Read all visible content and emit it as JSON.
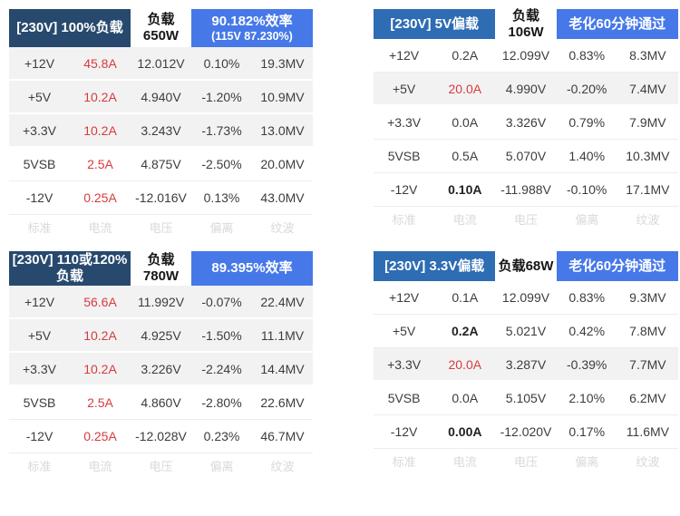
{
  "colors": {
    "navy": "#27496d",
    "steel_blue": "#2e6cb4",
    "bright_blue": "#4678e8",
    "red": "#d93a3c",
    "row_highlight": "#f2f2f3",
    "divider": "#ededef",
    "text": "#3b3c3f",
    "footer_text": "#d7d9dc"
  },
  "chart_data": [
    {
      "type": "table",
      "title": "[230V] 100%负载",
      "title_lines": [
        "[230V] 100%负载",
        ""
      ],
      "load": "负载650W",
      "result_lines": [
        "90.182%效率",
        "(115V 87.230%)"
      ],
      "result_kind": "efficiency",
      "columns": [
        "标准",
        "电流",
        "电压",
        "偏离",
        "纹波"
      ],
      "rows": [
        {
          "rail": "+12V",
          "current": "45.8A",
          "voltage": "12.012V",
          "deviation": "0.10%",
          "ripple": "19.3MV",
          "current_red": true,
          "current_bold": false,
          "highlight": true
        },
        {
          "rail": "+5V",
          "current": "10.2A",
          "voltage": "4.940V",
          "deviation": "-1.20%",
          "ripple": "10.9MV",
          "current_red": true,
          "current_bold": false,
          "highlight": true
        },
        {
          "rail": "+3.3V",
          "current": "10.2A",
          "voltage": "3.243V",
          "deviation": "-1.73%",
          "ripple": "13.0MV",
          "current_red": true,
          "current_bold": false,
          "highlight": true
        },
        {
          "rail": "5VSB",
          "current": "2.5A",
          "voltage": "4.875V",
          "deviation": "-2.50%",
          "ripple": "20.0MV",
          "current_red": true,
          "current_bold": false,
          "highlight": false
        },
        {
          "rail": "-12V",
          "current": "0.25A",
          "voltage": "-12.016V",
          "deviation": "0.13%",
          "ripple": "43.0MV",
          "current_red": true,
          "current_bold": false,
          "highlight": false
        }
      ]
    },
    {
      "type": "table",
      "title": "[230V] 5V偏载",
      "title_lines": [
        "[230V] 5V偏载",
        ""
      ],
      "load": "负载106W",
      "result_lines": [
        "老化60分钟通过",
        ""
      ],
      "result_kind": "aging",
      "columns": [
        "标准",
        "电流",
        "电压",
        "偏离",
        "纹波"
      ],
      "rows": [
        {
          "rail": "+12V",
          "current": "0.2A",
          "voltage": "12.099V",
          "deviation": "0.83%",
          "ripple": "8.3MV",
          "current_red": false,
          "current_bold": false,
          "highlight": false
        },
        {
          "rail": "+5V",
          "current": "20.0A",
          "voltage": "4.990V",
          "deviation": "-0.20%",
          "ripple": "7.4MV",
          "current_red": true,
          "current_bold": false,
          "highlight": true
        },
        {
          "rail": "+3.3V",
          "current": "0.0A",
          "voltage": "3.326V",
          "deviation": "0.79%",
          "ripple": "7.9MV",
          "current_red": false,
          "current_bold": false,
          "highlight": false
        },
        {
          "rail": "5VSB",
          "current": "0.5A",
          "voltage": "5.070V",
          "deviation": "1.40%",
          "ripple": "10.3MV",
          "current_red": false,
          "current_bold": false,
          "highlight": false
        },
        {
          "rail": "-12V",
          "current": "0.10A",
          "voltage": "-11.988V",
          "deviation": "-0.10%",
          "ripple": "17.1MV",
          "current_red": false,
          "current_bold": true,
          "highlight": false
        }
      ]
    },
    {
      "type": "table",
      "title": "[230V] 110或120%负载",
      "title_lines": [
        "[230V] 110或120%",
        "负载"
      ],
      "load": "负载780W",
      "result_lines": [
        "89.395%效率",
        ""
      ],
      "result_kind": "efficiency",
      "columns": [
        "标准",
        "电流",
        "电压",
        "偏离",
        "纹波"
      ],
      "rows": [
        {
          "rail": "+12V",
          "current": "56.6A",
          "voltage": "11.992V",
          "deviation": "-0.07%",
          "ripple": "22.4MV",
          "current_red": true,
          "current_bold": false,
          "highlight": true
        },
        {
          "rail": "+5V",
          "current": "10.2A",
          "voltage": "4.925V",
          "deviation": "-1.50%",
          "ripple": "11.1MV",
          "current_red": true,
          "current_bold": false,
          "highlight": true
        },
        {
          "rail": "+3.3V",
          "current": "10.2A",
          "voltage": "3.226V",
          "deviation": "-2.24%",
          "ripple": "14.4MV",
          "current_red": true,
          "current_bold": false,
          "highlight": true
        },
        {
          "rail": "5VSB",
          "current": "2.5A",
          "voltage": "4.860V",
          "deviation": "-2.80%",
          "ripple": "22.6MV",
          "current_red": true,
          "current_bold": false,
          "highlight": false
        },
        {
          "rail": "-12V",
          "current": "0.25A",
          "voltage": "-12.028V",
          "deviation": "0.23%",
          "ripple": "46.7MV",
          "current_red": true,
          "current_bold": false,
          "highlight": false
        }
      ]
    },
    {
      "type": "table",
      "title": "[230V] 3.3V偏载",
      "title_lines": [
        "[230V] 3.3V偏载",
        ""
      ],
      "load": "负载68W",
      "result_lines": [
        "老化60分钟通过",
        ""
      ],
      "result_kind": "aging",
      "columns": [
        "标准",
        "电流",
        "电压",
        "偏离",
        "纹波"
      ],
      "rows": [
        {
          "rail": "+12V",
          "current": "0.1A",
          "voltage": "12.099V",
          "deviation": "0.83%",
          "ripple": "9.3MV",
          "current_red": false,
          "current_bold": false,
          "highlight": false
        },
        {
          "rail": "+5V",
          "current": "0.2A",
          "voltage": "5.021V",
          "deviation": "0.42%",
          "ripple": "7.8MV",
          "current_red": false,
          "current_bold": true,
          "highlight": false
        },
        {
          "rail": "+3.3V",
          "current": "20.0A",
          "voltage": "3.287V",
          "deviation": "-0.39%",
          "ripple": "7.7MV",
          "current_red": true,
          "current_bold": false,
          "highlight": true
        },
        {
          "rail": "5VSB",
          "current": "0.0A",
          "voltage": "5.105V",
          "deviation": "2.10%",
          "ripple": "6.2MV",
          "current_red": false,
          "current_bold": false,
          "highlight": false
        },
        {
          "rail": "-12V",
          "current": "0.00A",
          "voltage": "-12.020V",
          "deviation": "0.17%",
          "ripple": "11.6MV",
          "current_red": false,
          "current_bold": true,
          "highlight": false
        }
      ]
    }
  ]
}
